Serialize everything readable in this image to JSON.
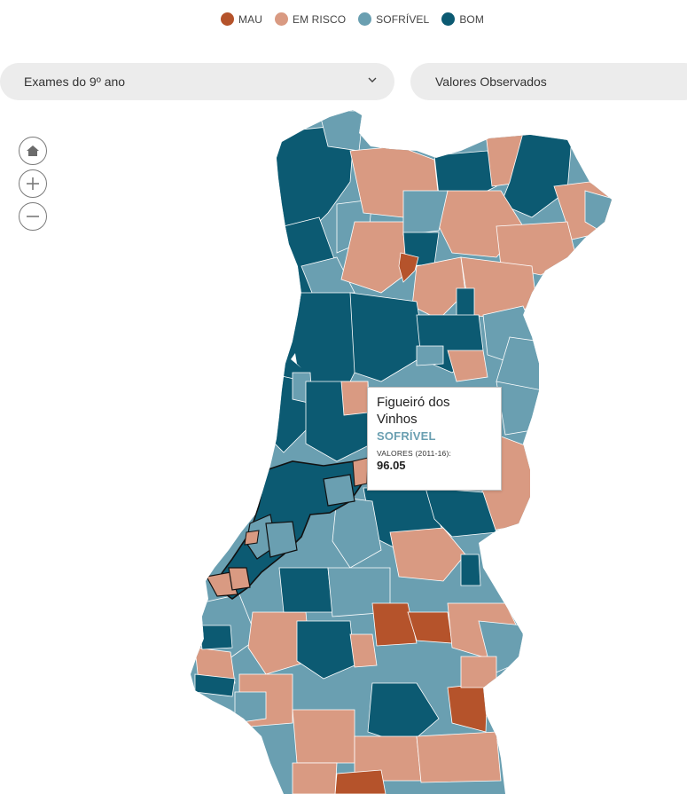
{
  "legend": {
    "items": [
      {
        "label": "MAU",
        "color": "#b5532b"
      },
      {
        "label": "EM RISCO",
        "color": "#d99a82"
      },
      {
        "label": "SOFRÍVEL",
        "color": "#6a9fb1"
      },
      {
        "label": "BOM",
        "color": "#0c5a72"
      }
    ]
  },
  "filters": {
    "exam_select": {
      "value": "Exames do 9º ano",
      "icon": "chevron-down-icon"
    },
    "values_select": {
      "value": "Valores Observados"
    }
  },
  "map_controls": {
    "home": "home-icon",
    "zoom_in": "zoom-in-icon",
    "zoom_out": "zoom-out-icon"
  },
  "tooltip": {
    "name": "Figueiró dos Vinhos",
    "category": "SOFRÍVEL",
    "category_color": "#6a9fb1",
    "values_label": "VALORES (2011-16):",
    "value": "96.05"
  },
  "colors": {
    "border": "#ffffff",
    "selected_outline": "#111111",
    "control_stroke": "#7a7a7a"
  }
}
